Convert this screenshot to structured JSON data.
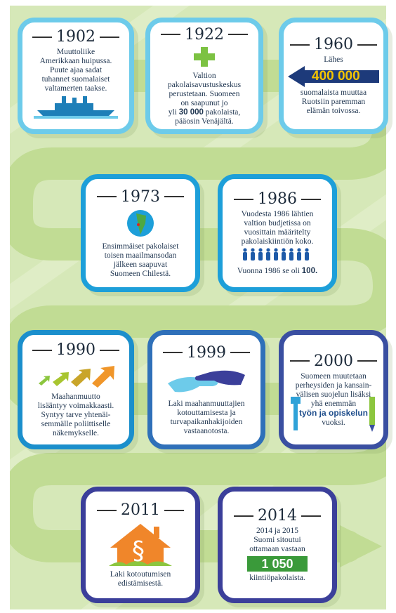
{
  "cards": [
    {
      "year": "1902",
      "lines": [
        "Muuttoliike",
        "Amerikkaan huipussa.",
        "Puute ajaa sadat",
        "tuhannet suomalaiset",
        "valtamerten taakse."
      ]
    },
    {
      "year": "1922",
      "lines": [
        "Valtion",
        "pakolaisavustuskeskus",
        "perustetaan. Suomeen",
        "on saapunut jo",
        [
          "yli ",
          {
            "text": "30 000",
            "bold": true
          },
          " pakolaista,"
        ],
        "pääosin Venäjältä."
      ]
    },
    {
      "year": "1960",
      "lines": [
        "Lähes",
        "suomalaista muuttaa",
        "Ruotsiin paremman",
        "elämän toivossa."
      ],
      "badge": "400 000"
    },
    {
      "year": "1973",
      "lines": [
        "Ensimmäiset pakolaiset",
        "toisen maailmansodan",
        "jälkeen saapuvat",
        "Suomeen Chilestä."
      ]
    },
    {
      "year": "1986",
      "lines": [
        "Vuodesta 1986 lähtien",
        "valtion budjetissa on",
        "vuosittain määritelty",
        "pakolaiskiintiön koko.",
        [
          "Vuonna 1986 se oli ",
          {
            "text": "100.",
            "bold": true
          }
        ]
      ]
    },
    {
      "year": "1990",
      "lines": [
        "Maahanmuutto",
        "lisääntyy voimakkaasti.",
        "Syntyy tarve yhtenäi-",
        "semmälle poliittiselle",
        "näkemykselle."
      ]
    },
    {
      "year": "1999",
      "lines": [
        "Laki maahanmuuttajien",
        "kotouttamisesta ja",
        "turvapaikanhakijoiden",
        "vastaanotosta."
      ]
    },
    {
      "year": "2000",
      "lines": [
        "Suomeen muutetaan",
        "perheysiden ja kansain-",
        "välisen suojelun lisäksi",
        "yhä enemmän",
        [
          {
            "text": "työn ja opiskelun",
            "bold": true
          }
        ],
        "vuoksi."
      ]
    },
    {
      "year": "2011",
      "lines": [
        "Laki kotoutumisen",
        "edistämisestä."
      ],
      "badge": "§"
    },
    {
      "year": "2014",
      "lines": [
        "2014 ja 2015",
        "Suomi sitoutui",
        "ottamaan vastaan",
        "kiintiöpakolaista."
      ],
      "badge": "1 050"
    }
  ]
}
